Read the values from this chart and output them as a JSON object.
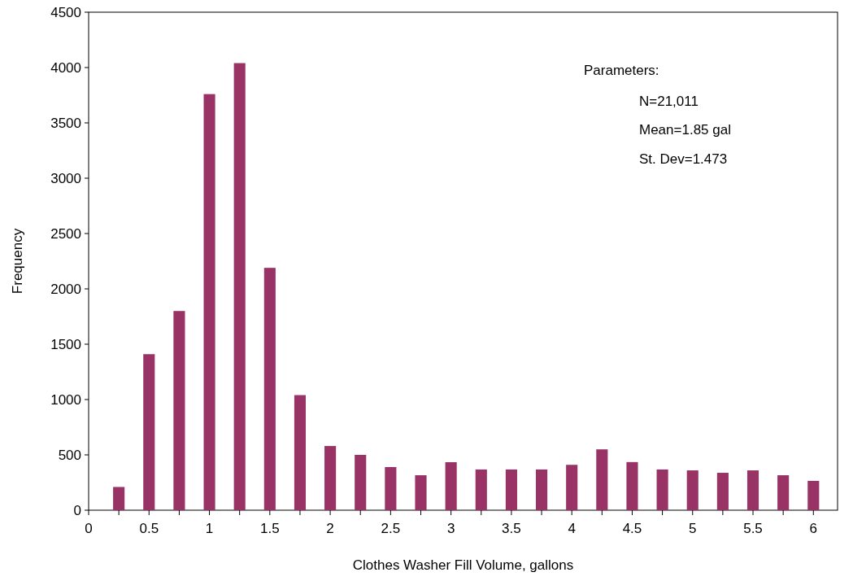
{
  "chart_data": {
    "type": "bar",
    "xlabel": "Clothes Washer Fill Volume, gallons",
    "ylabel": "Frequency",
    "x": [
      0.25,
      0.5,
      0.75,
      1,
      1.25,
      1.5,
      1.75,
      2,
      2.25,
      2.5,
      2.75,
      3,
      3.25,
      3.5,
      3.75,
      4,
      4.25,
      4.5,
      4.75,
      5,
      5.25,
      5.5,
      5.75,
      6
    ],
    "values": [
      210,
      1410,
      1800,
      3760,
      4040,
      2190,
      1040,
      580,
      500,
      390,
      316,
      434,
      368,
      368,
      368,
      410,
      550,
      435,
      368,
      360,
      338,
      360,
      316,
      265
    ],
    "color": "#993366",
    "xlim": [
      0,
      6.2
    ],
    "xticks": [
      0,
      {
        "value": 0.25,
        "label": null
      },
      0.5,
      {
        "value": 0.75,
        "label": null
      },
      1,
      {
        "value": 1.25,
        "label": null
      },
      1.5,
      {
        "value": 1.75,
        "label": null
      },
      2,
      {
        "value": 2.25,
        "label": null
      },
      2.5,
      {
        "value": 2.75,
        "label": null
      },
      3,
      {
        "value": 3.25,
        "label": null
      },
      3.5,
      {
        "value": 3.75,
        "label": null
      },
      4,
      {
        "value": 4.25,
        "label": null
      },
      4.5,
      {
        "value": 4.75,
        "label": null
      },
      5,
      {
        "value": 5.25,
        "label": null
      },
      5.5,
      {
        "value": 5.75,
        "label": null
      },
      6
    ],
    "ylim": [
      0,
      4500
    ],
    "yticks": [
      0,
      500,
      1000,
      1500,
      2000,
      2500,
      3000,
      3500,
      4000,
      4500
    ],
    "grid": false,
    "annotations": [
      "Parameters:",
      "N=21,011",
      "Mean=1.85 gal",
      "St. Dev=1.473"
    ]
  }
}
